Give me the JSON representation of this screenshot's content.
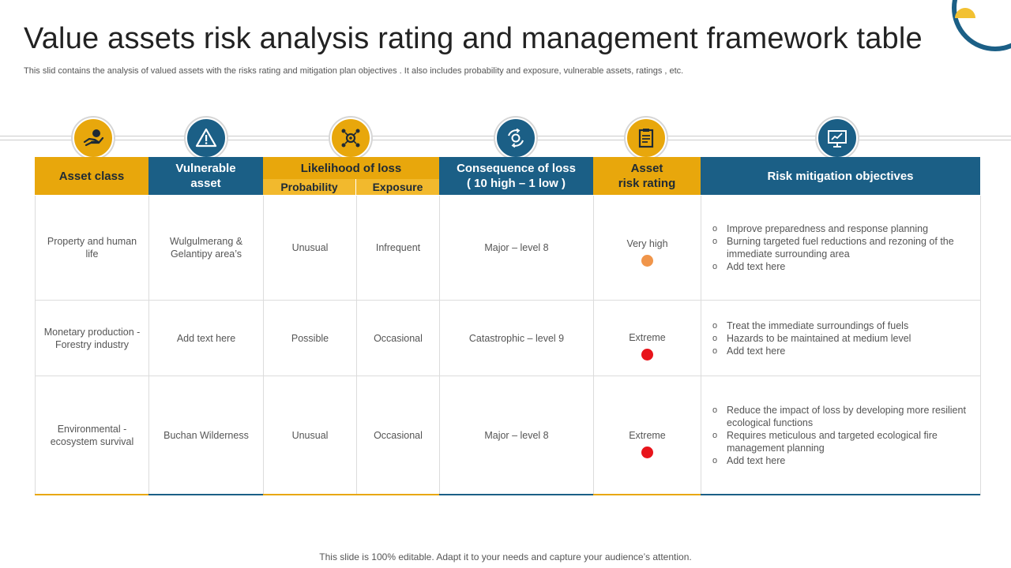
{
  "title": "Value assets risk analysis rating and management framework table",
  "subtitle": "This slid contains the analysis of valued assets with the risks rating and mitigation plan objectives . It also includes probability and exposure, vulnerable assets, ratings , etc.",
  "colors": {
    "gold": "#e8a70c",
    "blue": "#1b5f86",
    "orange_dot": "#f0954a",
    "red_dot": "#e8141b"
  },
  "headers": {
    "asset_class": "Asset class",
    "vulnerable_asset": "Vulnerable asset",
    "likelihood": "Likelihood of loss",
    "probability": "Probability",
    "exposure": "Exposure",
    "consequence_line1": "Consequence of loss",
    "consequence_line2": "( 10 high – 1 low )",
    "rating_line1": "Asset",
    "rating_line2": "risk rating",
    "mitigation": "Risk mitigation objectives"
  },
  "icons": [
    "hand-money-icon",
    "warning-icon",
    "gear-network-icon",
    "cycle-gear-icon",
    "clipboard-icon",
    "presentation-chart-icon"
  ],
  "rows": [
    {
      "asset_class": "Property and human life",
      "vulnerable": "Wulgulmerang & Gelantipy area’s",
      "probability": "Unusual",
      "exposure": "Infrequent",
      "consequence": "Major – level 8",
      "rating": "Very high",
      "objectives": [
        "Improve preparedness and response planning",
        "Burning targeted fuel reductions and rezoning of the immediate surrounding area",
        "Add text here"
      ]
    },
    {
      "asset_class": "Monetary production - Forestry industry",
      "vulnerable": "Add text here",
      "probability": "Possible",
      "exposure": "Occasional",
      "consequence": "Catastrophic – level 9",
      "rating": "Extreme",
      "objectives": [
        "Treat the immediate surroundings of fuels",
        "Hazards to be maintained at medium level",
        "Add text here"
      ]
    },
    {
      "asset_class": "Environmental - ecosystem survival",
      "vulnerable": "Buchan Wilderness",
      "probability": "Unusual",
      "exposure": "Occasional",
      "consequence": "Major – level 8",
      "rating": "Extreme",
      "objectives": [
        "Reduce the impact of loss by developing more resilient ecological functions",
        "Requires meticulous and targeted ecological fire management planning",
        "Add text here"
      ]
    }
  ],
  "footer": "This slide is 100% editable. Adapt it to your needs and capture your audience’s attention."
}
